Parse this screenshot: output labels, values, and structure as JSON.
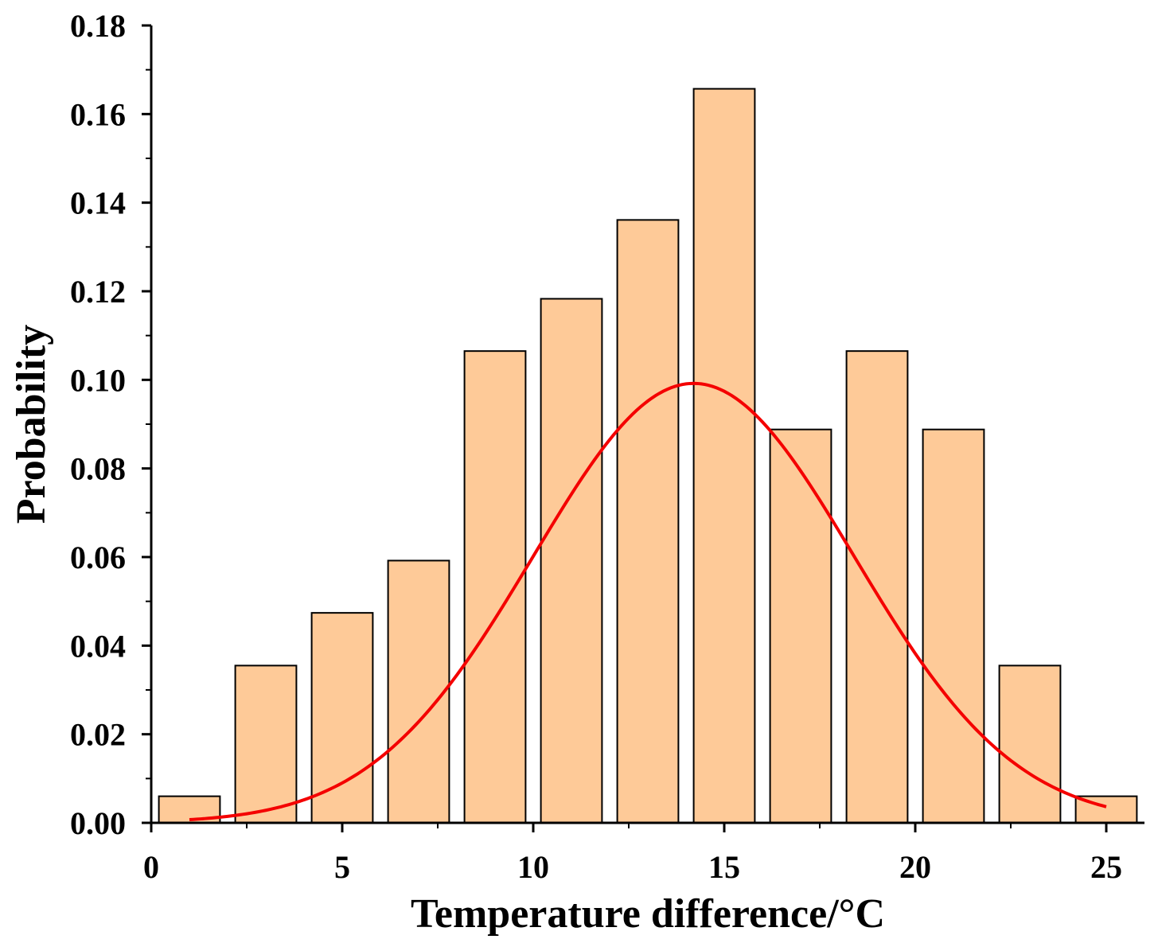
{
  "chart_data": {
    "type": "bar",
    "title": "",
    "xlabel": "Temperature difference/°C",
    "ylabel": "Probability",
    "xlim": [
      0,
      26
    ],
    "ylim": [
      0,
      0.18
    ],
    "x_ticks": [
      0,
      5,
      10,
      15,
      20,
      25
    ],
    "x_tick_labels": [
      "0",
      "5",
      "10",
      "15",
      "20",
      "25"
    ],
    "y_ticks": [
      0,
      0.02,
      0.04,
      0.06,
      0.08,
      0.1,
      0.12,
      0.14,
      0.16,
      0.18
    ],
    "y_tick_labels": [
      "0.00",
      "0.02",
      "0.04",
      "0.06",
      "0.08",
      "0.10",
      "0.12",
      "0.14",
      "0.16",
      "0.18"
    ],
    "bin_width": 2,
    "bar_fraction": 0.8,
    "bins": [
      {
        "center": 1,
        "value": 0.006
      },
      {
        "center": 3,
        "value": 0.0355
      },
      {
        "center": 5,
        "value": 0.0474
      },
      {
        "center": 7,
        "value": 0.0592
      },
      {
        "center": 9,
        "value": 0.1065
      },
      {
        "center": 11,
        "value": 0.1183
      },
      {
        "center": 13,
        "value": 0.1361
      },
      {
        "center": 15,
        "value": 0.1657
      },
      {
        "center": 17,
        "value": 0.0888
      },
      {
        "center": 19,
        "value": 0.1065
      },
      {
        "center": 21,
        "value": 0.0888
      },
      {
        "center": 23,
        "value": 0.0355
      },
      {
        "center": 25,
        "value": 0.006
      }
    ],
    "fit_curve": {
      "type": "normal",
      "mean": 14.2,
      "peak": 0.0992,
      "std": 4.2,
      "x_range": [
        1,
        25
      ]
    },
    "colors": {
      "bar_fill": "#FECA98",
      "bar_edge": "#000000",
      "curve": "#F40000",
      "axis": "#000000"
    }
  }
}
